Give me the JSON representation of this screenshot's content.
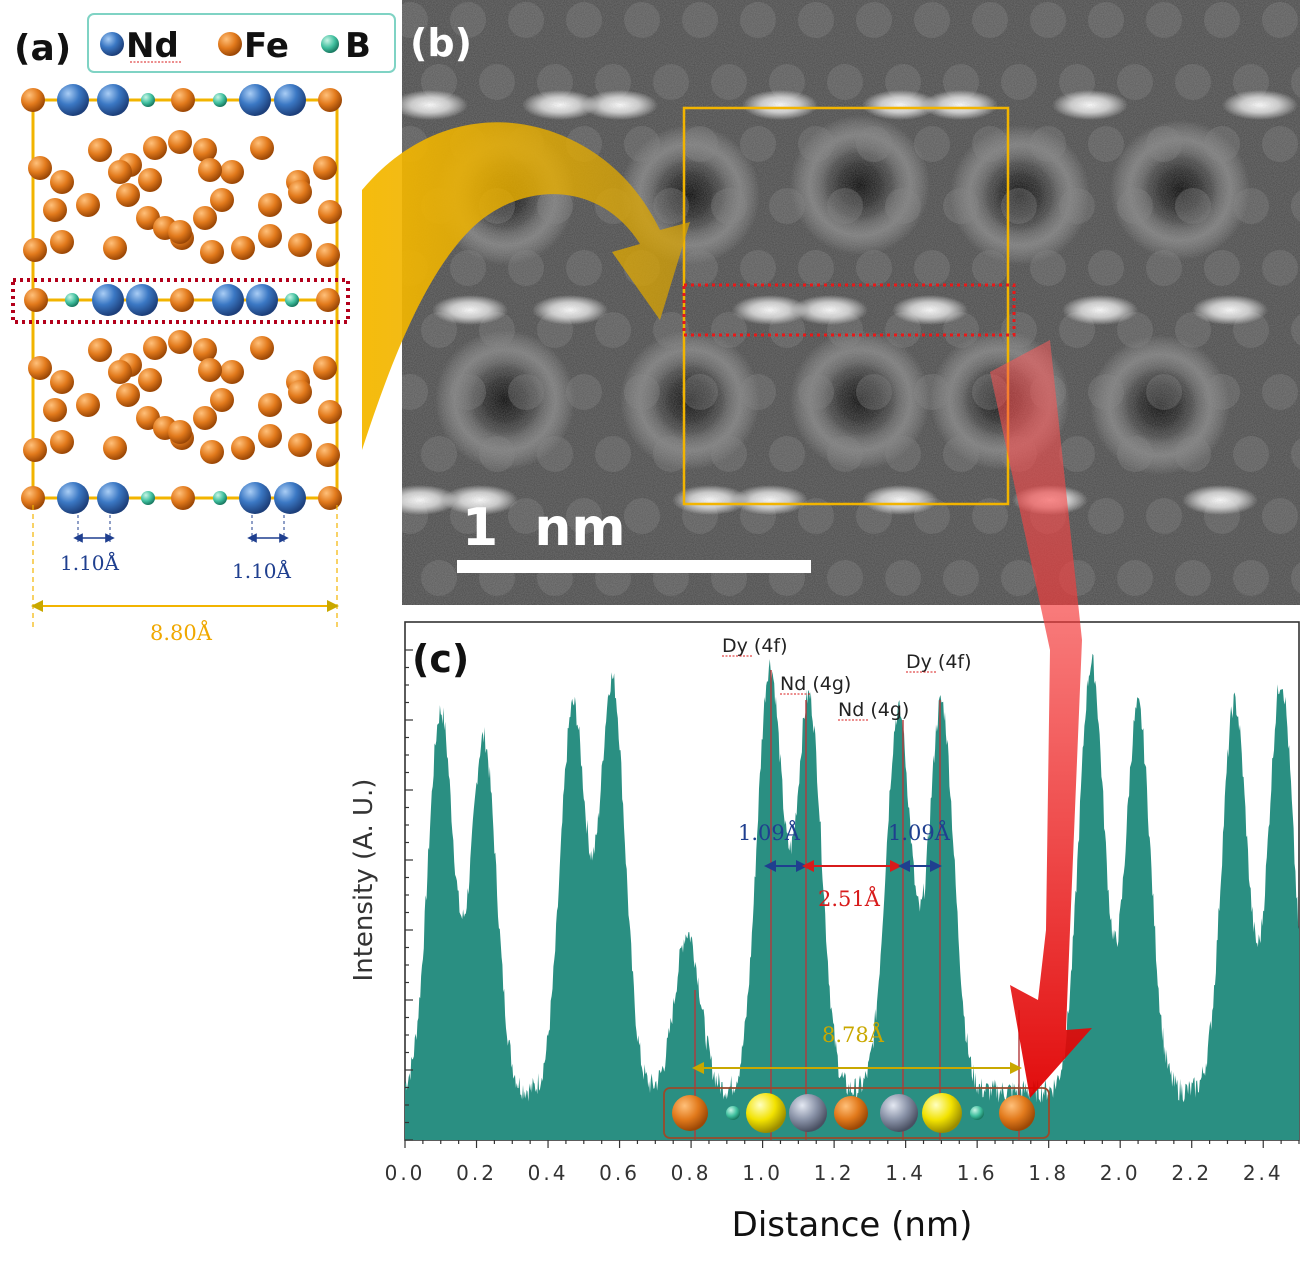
{
  "panels": {
    "a": {
      "label": "(a)",
      "legend": [
        {
          "name": "Nd",
          "color": "#3b78c4"
        },
        {
          "name": "Fe",
          "color": "#e27a1c"
        },
        {
          "name": "B",
          "color": "#3fbf9e"
        }
      ],
      "nd_spacing_left": "1.10Å",
      "nd_spacing_right": "1.10Å",
      "cell_width": "8.80Å"
    },
    "b": {
      "label": "(b)",
      "scale_bar": "1  nm"
    },
    "c": {
      "label": "(c)"
    }
  },
  "chart_data": {
    "type": "area",
    "title": "",
    "xlabel": "Distance (nm)",
    "ylabel": "Intensity (A. U.)",
    "xlim": [
      0.0,
      2.5
    ],
    "ylim": [
      0,
      1
    ],
    "x_ticks": [
      "0.0",
      "0.2",
      "0.4",
      "0.6",
      "0.8",
      "1.0",
      "1.2",
      "1.4",
      "1.6",
      "1.8",
      "2.0",
      "2.2",
      "2.4"
    ],
    "color": "#2a8f82",
    "series": [
      {
        "name": "intensity profile",
        "peaks": [
          {
            "x": 0.1,
            "height": 0.86
          },
          {
            "x": 0.22,
            "height": 0.8
          },
          {
            "x": 0.47,
            "height": 0.87
          },
          {
            "x": 0.58,
            "height": 0.93
          },
          {
            "x": 0.79,
            "height": 0.36
          },
          {
            "x": 1.02,
            "height": 0.96
          },
          {
            "x": 1.13,
            "height": 0.89
          },
          {
            "x": 1.38,
            "height": 0.86
          },
          {
            "x": 1.5,
            "height": 0.88
          },
          {
            "x": 1.92,
            "height": 0.97
          },
          {
            "x": 2.05,
            "height": 0.87
          },
          {
            "x": 2.32,
            "height": 0.88
          },
          {
            "x": 2.45,
            "height": 0.93
          }
        ]
      }
    ],
    "annotations": {
      "dy_left": "Dy (4f)",
      "nd_left": "Nd (4g)",
      "nd_right": "Nd (4g)",
      "dy_right": "Dy (4f)",
      "spacing_left": "1.09Å",
      "spacing_right": "1.09Å",
      "spacing_mid": "2.51Å",
      "cell_width": "8.78Å"
    }
  },
  "colors": {
    "orange": "#e27a1c",
    "blue": "#3b78c4",
    "teal": "#3fbf9e",
    "gold": "#f2b400",
    "red_arrow": "#e81818",
    "dotted_red": "#b3001b",
    "annot_blue": "#1f3f8f",
    "annot_red": "#d81b1b",
    "annot_gold": "#c9a800"
  }
}
